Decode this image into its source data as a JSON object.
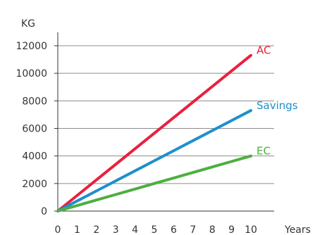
{
  "chart_data": {
    "type": "line",
    "ylabel": "KG",
    "xlabel": "Years",
    "x": [
      0,
      1,
      2,
      3,
      4,
      5,
      6,
      7,
      8,
      9,
      10
    ],
    "xlim": [
      0,
      10
    ],
    "ylim": [
      0,
      12000
    ],
    "yticks": [
      0,
      2000,
      4000,
      6000,
      8000,
      10000,
      12000
    ],
    "ytick_labels": [
      "0",
      "2000",
      "4000",
      "6000",
      "8000",
      "10000",
      "12000"
    ],
    "xtick_labels": [
      "0",
      "1",
      "2",
      "3",
      "4",
      "5",
      "6",
      "7",
      "8",
      "9",
      "10"
    ],
    "grid": "horizontal",
    "series": [
      {
        "name": "AC",
        "color": "#e8213f",
        "values": [
          0,
          1130,
          2260,
          3390,
          4520,
          5650,
          6780,
          7910,
          9040,
          10170,
          11300
        ]
      },
      {
        "name": "Savings",
        "color": "#1f8fcc",
        "values": [
          0,
          730,
          1460,
          2190,
          2920,
          3650,
          4380,
          5110,
          5840,
          6570,
          7300
        ]
      },
      {
        "name": "EC",
        "color": "#4caf3f",
        "values": [
          0,
          400,
          800,
          1200,
          1600,
          2000,
          2400,
          2800,
          3200,
          3600,
          4000
        ]
      }
    ]
  }
}
